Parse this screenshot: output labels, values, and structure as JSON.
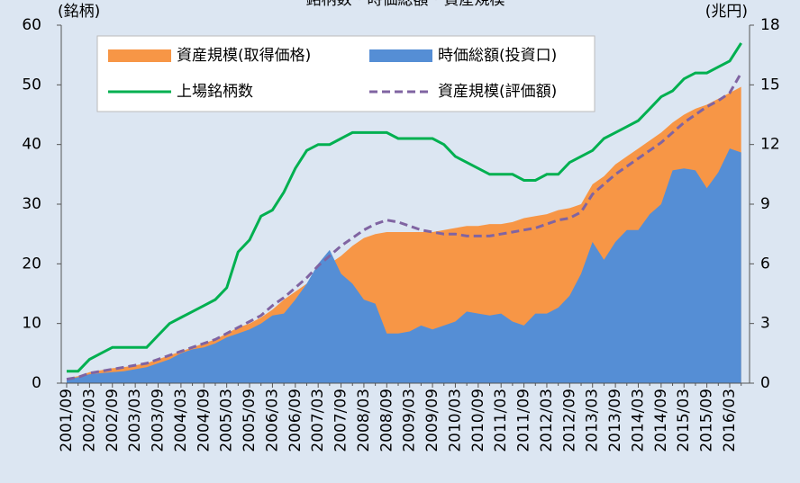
{
  "chart_data": {
    "type": "line",
    "title": "銘柄数・時価総額・資産規模",
    "y_unit_label": "(銘柄)",
    "y2_unit_label": "(兆円)",
    "categories": [
      "2001/09",
      null,
      "2002/03",
      null,
      "2002/09",
      null,
      "2003/03",
      null,
      "2003/09",
      null,
      "2004/03",
      null,
      "2004/09",
      null,
      "2005/03",
      null,
      "2005/09",
      null,
      "2006/03",
      null,
      "2006/09",
      null,
      "2007/03",
      null,
      "2007/09",
      null,
      "2008/03",
      null,
      "2008/09",
      null,
      "2009/03",
      null,
      "2009/09",
      null,
      "2010/03",
      null,
      "2010/09",
      null,
      "2011/03",
      null,
      "2011/09",
      null,
      "2012/03",
      null,
      "2012/09",
      null,
      "2013/03",
      null,
      "2013/09",
      null,
      "2014/03",
      null,
      "2014/09",
      null,
      "2015/03",
      null,
      "2015/09",
      null,
      "2016/03",
      null
    ],
    "ylim": [
      0,
      60
    ],
    "yticks": [
      0,
      10,
      20,
      30,
      40,
      50,
      60
    ],
    "y2lim": [
      0,
      18
    ],
    "y2ticks": [
      0,
      3,
      6,
      9,
      12,
      15,
      18
    ],
    "legend": "upper left",
    "series": [
      {
        "name": "資産規模(取得価格)",
        "type": "area",
        "axis": "y2",
        "color": "#f79646",
        "values": [
          0.25,
          0.35,
          0.55,
          0.65,
          0.75,
          0.8,
          0.9,
          1.0,
          1.2,
          1.4,
          1.6,
          1.8,
          2.0,
          2.2,
          2.5,
          2.8,
          3.0,
          3.3,
          3.7,
          4.2,
          4.6,
          5.0,
          5.5,
          6.0,
          6.4,
          6.9,
          7.3,
          7.5,
          7.6,
          7.6,
          7.6,
          7.6,
          7.6,
          7.7,
          7.8,
          7.9,
          7.9,
          8.0,
          8.0,
          8.1,
          8.3,
          8.4,
          8.5,
          8.7,
          8.8,
          9.0,
          10.0,
          10.4,
          11.0,
          11.4,
          11.8,
          12.2,
          12.6,
          13.1,
          13.5,
          13.8,
          14.0,
          14.3,
          14.6,
          14.9
        ]
      },
      {
        "name": "時価総額(投資口)",
        "type": "area",
        "axis": "y2",
        "color": "#558ed5",
        "values": [
          0.2,
          0.3,
          0.45,
          0.5,
          0.55,
          0.6,
          0.7,
          0.8,
          1.0,
          1.2,
          1.5,
          1.7,
          1.8,
          2.0,
          2.3,
          2.5,
          2.7,
          3.0,
          3.4,
          3.5,
          4.2,
          5.0,
          6.0,
          6.7,
          5.5,
          5.0,
          4.2,
          4.0,
          2.5,
          2.5,
          2.6,
          2.9,
          2.7,
          2.9,
          3.1,
          3.6,
          3.5,
          3.4,
          3.5,
          3.1,
          2.9,
          3.5,
          3.5,
          3.8,
          4.4,
          5.5,
          7.1,
          6.2,
          7.1,
          7.7,
          7.7,
          8.5,
          9.0,
          10.7,
          10.8,
          10.7,
          9.8,
          10.6,
          11.8,
          11.6
        ]
      },
      {
        "name": "上場銘柄数",
        "type": "line",
        "color": "#00b050",
        "values": [
          2,
          2,
          4,
          5,
          6,
          6,
          6,
          6,
          8,
          10,
          11,
          12,
          13,
          14,
          16,
          22,
          24,
          28,
          29,
          32,
          36,
          39,
          40,
          40,
          41,
          42,
          42,
          42,
          42,
          41,
          41,
          41,
          41,
          40,
          38,
          37,
          36,
          35,
          35,
          35,
          34,
          34,
          35,
          35,
          37,
          38,
          39,
          41,
          42,
          43,
          44,
          46,
          48,
          49,
          51,
          52,
          52,
          53,
          54,
          57
        ]
      },
      {
        "name": "資産規模(評価額)",
        "type": "line",
        "line_style": "dashed",
        "axis": "y2",
        "color": "#8064a2",
        "values": [
          0.2,
          0.3,
          0.5,
          0.6,
          0.7,
          0.8,
          0.9,
          1.0,
          1.2,
          1.4,
          1.6,
          1.8,
          2.0,
          2.2,
          2.5,
          2.8,
          3.1,
          3.4,
          3.9,
          4.3,
          4.8,
          5.3,
          5.9,
          6.4,
          6.9,
          7.3,
          7.7,
          8.0,
          8.2,
          8.1,
          7.9,
          7.7,
          7.6,
          7.5,
          7.5,
          7.4,
          7.4,
          7.4,
          7.5,
          7.6,
          7.7,
          7.8,
          8.0,
          8.2,
          8.3,
          8.6,
          9.5,
          10.0,
          10.5,
          10.9,
          11.3,
          11.7,
          12.1,
          12.6,
          13.1,
          13.5,
          13.9,
          14.2,
          14.6,
          15.6
        ]
      }
    ]
  }
}
